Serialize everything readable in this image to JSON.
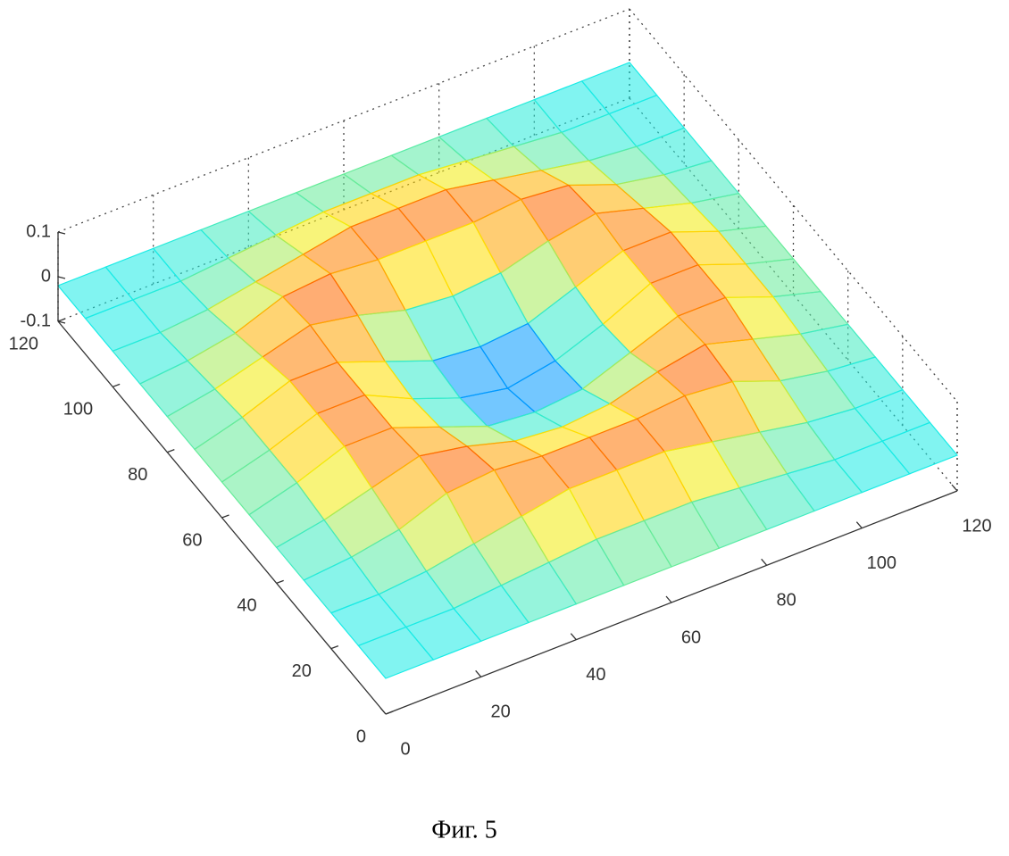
{
  "chart_data": {
    "type": "surface",
    "x": [
      0,
      10,
      20,
      30,
      40,
      50,
      60,
      70,
      80,
      90,
      100,
      110,
      120
    ],
    "y": [
      0,
      10,
      20,
      30,
      40,
      50,
      60,
      70,
      80,
      90,
      100,
      110,
      120
    ],
    "z": [
      [
        -0.02,
        -0.02,
        -0.02,
        -0.02,
        -0.02,
        -0.02,
        -0.02,
        -0.02,
        -0.02,
        -0.02,
        -0.02,
        -0.02,
        -0.02
      ],
      [
        -0.02,
        -0.02,
        -0.02,
        -0.01,
        0,
        0.01,
        0.01,
        0.01,
        0,
        -0.01,
        -0.02,
        -0.02,
        -0.02
      ],
      [
        -0.02,
        -0.02,
        -0.01,
        0.01,
        0.03,
        0.05,
        0.05,
        0.05,
        0.03,
        0.01,
        -0.01,
        -0.02,
        -0.02
      ],
      [
        -0.02,
        -0.01,
        0.01,
        0.05,
        0.06,
        0.05,
        0.05,
        0.05,
        0.06,
        0.05,
        0.01,
        -0.01,
        -0.02
      ],
      [
        -0.02,
        0,
        0.03,
        0.06,
        0.04,
        0.01,
        0,
        0.01,
        0.04,
        0.06,
        0.03,
        0,
        -0.02
      ],
      [
        -0.02,
        0.01,
        0.05,
        0.05,
        0.01,
        -0.03,
        -0.04,
        -0.03,
        0.01,
        0.05,
        0.05,
        0.01,
        -0.02
      ],
      [
        -0.02,
        0.01,
        0.05,
        0.05,
        0,
        -0.04,
        -0.06,
        -0.04,
        0,
        0.05,
        0.05,
        0.01,
        -0.02
      ],
      [
        -0.02,
        0.01,
        0.05,
        0.05,
        0.01,
        -0.03,
        -0.04,
        -0.03,
        0.01,
        0.05,
        0.05,
        0.01,
        -0.02
      ],
      [
        -0.02,
        0,
        0.03,
        0.06,
        0.04,
        0.01,
        0,
        0.01,
        0.04,
        0.06,
        0.03,
        0,
        -0.02
      ],
      [
        -0.02,
        -0.01,
        0.01,
        0.05,
        0.06,
        0.05,
        0.05,
        0.05,
        0.06,
        0.05,
        0.01,
        -0.01,
        -0.02
      ],
      [
        -0.02,
        -0.02,
        -0.01,
        0.01,
        0.03,
        0.05,
        0.05,
        0.05,
        0.03,
        0.01,
        -0.01,
        -0.02,
        -0.02
      ],
      [
        -0.02,
        -0.02,
        -0.02,
        -0.01,
        0,
        0.01,
        0.01,
        0.01,
        0,
        -0.01,
        -0.02,
        -0.02,
        -0.02
      ],
      [
        -0.02,
        -0.02,
        -0.02,
        -0.02,
        -0.02,
        -0.02,
        -0.02,
        -0.02,
        -0.02,
        -0.02,
        -0.02,
        -0.02,
        -0.02
      ]
    ],
    "xlim": [
      0,
      120
    ],
    "ylim": [
      0,
      120
    ],
    "zlim": [
      -0.1,
      0.1
    ],
    "xticks": [
      0,
      20,
      40,
      60,
      80,
      100,
      120
    ],
    "yticks": [
      0,
      20,
      40,
      60,
      80,
      100,
      120
    ],
    "zticks": [
      -0.1,
      0,
      0.1
    ],
    "colormap": "jet",
    "caption": "Фиг. 5"
  }
}
